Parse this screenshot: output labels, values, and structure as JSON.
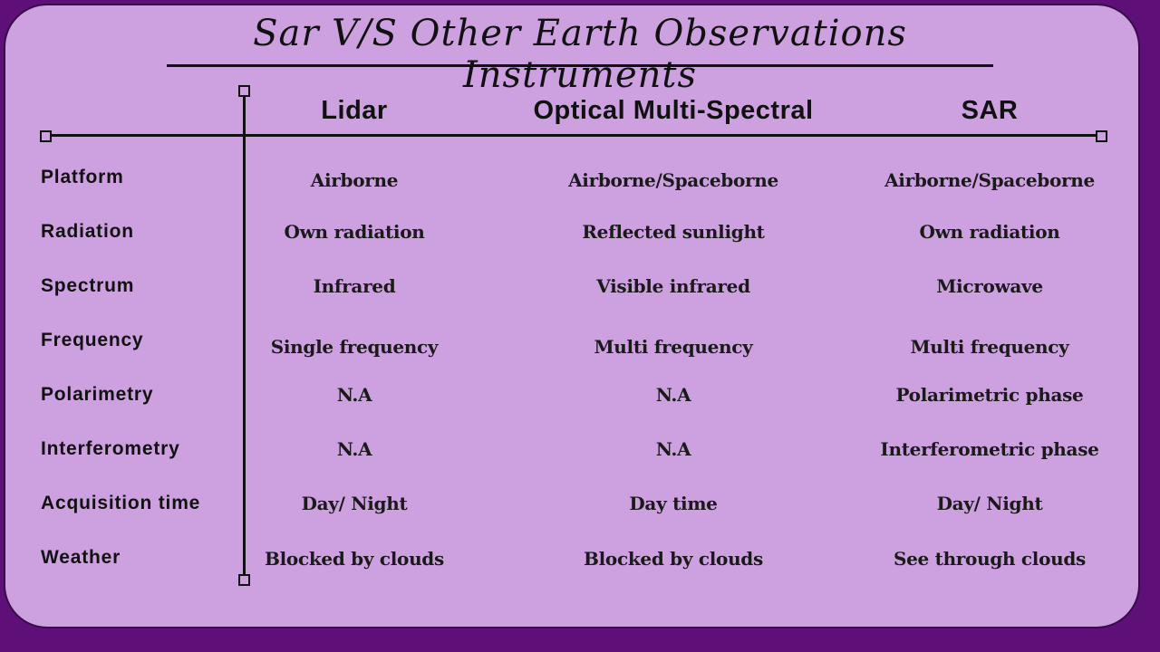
{
  "title": "Sar V/S Other Earth Observations Instruments",
  "columns": [
    "Lidar",
    "Optical Multi-Spectral",
    "SAR"
  ],
  "rows": [
    {
      "label": "Platform",
      "values": [
        "Airborne",
        "Airborne/Spaceborne",
        "Airborne/Spaceborne"
      ]
    },
    {
      "label": "Radiation",
      "values": [
        "Own radiation",
        "Reflected sunlight",
        "Own radiation"
      ]
    },
    {
      "label": "Spectrum",
      "values": [
        "Infrared",
        "Visible infrared",
        "Microwave"
      ]
    },
    {
      "label": "Frequency",
      "values": [
        "Single frequency",
        "Multi frequency",
        "Multi frequency"
      ]
    },
    {
      "label": "Polarimetry",
      "values": [
        "N.A",
        "N.A",
        "Polarimetric phase"
      ]
    },
    {
      "label": "Interferometry",
      "values": [
        "N.A",
        "N.A",
        "Interferometric phase"
      ]
    },
    {
      "label": "Acquisition time",
      "values": [
        "Day/ Night",
        "Day time",
        "Day/ Night"
      ]
    },
    {
      "label": "Weather",
      "values": [
        "Blocked by clouds",
        "Blocked by clouds",
        "See through clouds"
      ]
    }
  ],
  "colors": {
    "background": "#5e0f78",
    "card": "#cda1e0",
    "ink": "#111111"
  }
}
